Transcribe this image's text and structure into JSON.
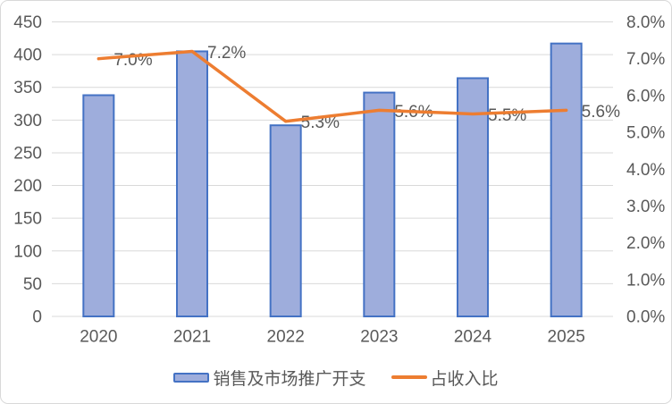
{
  "chart_data": {
    "type": "bar",
    "subtype": "combo-bar-line-dual-axis",
    "title": "",
    "categories": [
      "2020",
      "2021",
      "2022",
      "2023",
      "2024",
      "2025"
    ],
    "series": [
      {
        "name": "销售及市场推广开支",
        "type": "bar",
        "axis": "left",
        "values": [
          338,
          405,
          292,
          342,
          364,
          417
        ]
      },
      {
        "name": "占收入比",
        "type": "line",
        "axis": "right",
        "values": [
          7.0,
          7.2,
          5.3,
          5.6,
          5.5,
          5.6
        ],
        "point_labels": [
          "7.0%",
          "7.2%",
          "5.3%",
          "5.6%",
          "5.5%",
          "5.6%"
        ]
      }
    ],
    "left_axis": {
      "min": 0,
      "max": 450,
      "step": 50,
      "tick_labels": [
        "450",
        "400",
        "350",
        "300",
        "250",
        "200",
        "150",
        "100",
        "50",
        "0"
      ]
    },
    "right_axis": {
      "min": 0,
      "max": 8,
      "step": 1,
      "tick_labels": [
        "8.0%",
        "7.0%",
        "6.0%",
        "5.0%",
        "4.0%",
        "3.0%",
        "2.0%",
        "1.0%",
        "0.0%"
      ]
    },
    "grid": true,
    "legend_position": "bottom",
    "colors": {
      "bar_fill": "#9eaddc",
      "bar_border": "#4472c4",
      "line": "#ed7d31",
      "text": "#595959",
      "gridline": "#d9d9d9",
      "chart_border": "#d9d9d9"
    }
  },
  "legend": {
    "items": [
      {
        "label": "销售及市场推广开支",
        "series": "bar"
      },
      {
        "label": "占收入比",
        "series": "line"
      }
    ]
  }
}
